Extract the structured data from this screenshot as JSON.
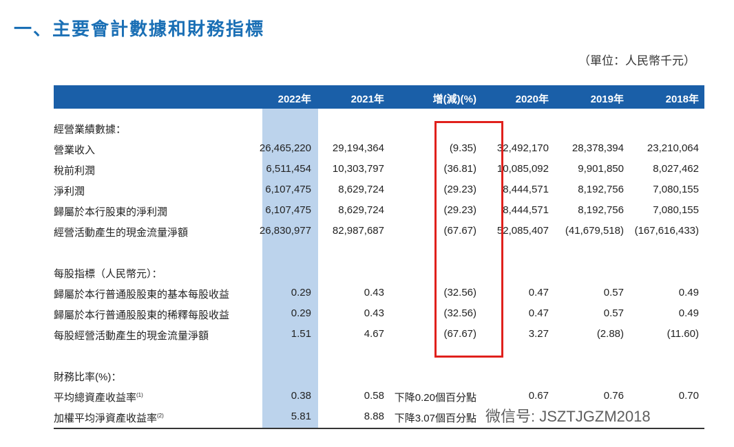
{
  "header": {
    "title": "一、主要會計數據和財務指標",
    "unit": "（單位：人民幣千元）"
  },
  "table": {
    "columns": [
      "2022年",
      "2021年",
      "增(減)(%)",
      "2020年",
      "2019年",
      "2018年"
    ],
    "sections": [
      {
        "title": "經營業績數據：",
        "rows": [
          {
            "label": "營業收入",
            "values": [
              "26,465,220",
              "29,194,364",
              "(9.35)",
              "32,492,170",
              "28,378,394",
              "23,210,064"
            ]
          },
          {
            "label": "稅前利潤",
            "values": [
              "6,511,454",
              "10,303,797",
              "(36.81)",
              "10,085,092",
              "9,901,850",
              "8,027,462"
            ]
          },
          {
            "label": "淨利潤",
            "values": [
              "6,107,475",
              "8,629,724",
              "(29.23)",
              "8,444,571",
              "8,192,756",
              "7,080,155"
            ]
          },
          {
            "label": "歸屬於本行股東的淨利潤",
            "values": [
              "6,107,475",
              "8,629,724",
              "(29.23)",
              "8,444,571",
              "8,192,756",
              "7,080,155"
            ]
          },
          {
            "label": "經營活動產生的現金流量淨額",
            "values": [
              "26,830,977",
              "82,987,687",
              "(67.67)",
              "52,085,407",
              "(41,679,518)",
              "(167,616,433)"
            ]
          }
        ]
      },
      {
        "title": "每股指標（人民幣元）：",
        "rows": [
          {
            "label": "歸屬於本行普通股股東的基本每股收益",
            "values": [
              "0.29",
              "0.43",
              "(32.56)",
              "0.47",
              "0.57",
              "0.49"
            ]
          },
          {
            "label": "歸屬於本行普通股股東的稀釋每股收益",
            "values": [
              "0.29",
              "0.43",
              "(32.56)",
              "0.47",
              "0.57",
              "0.49"
            ]
          },
          {
            "label": "每股經營活動產生的現金流量淨額",
            "values": [
              "1.51",
              "4.67",
              "(67.67)",
              "3.27",
              "(2.88)",
              "(11.60)"
            ]
          }
        ]
      },
      {
        "title": "財務比率(%)：",
        "rows": [
          {
            "label": "平均總資產收益率",
            "note": "(1)",
            "values": [
              "0.38",
              "0.58",
              "下降0.20個百分點",
              "0.67",
              "0.76",
              "0.70"
            ]
          },
          {
            "label": "加權平均淨資產收益率",
            "note": "(2)",
            "values": [
              "5.81",
              "8.88",
              "下降3.07個百分點",
              null,
              null,
              null
            ]
          }
        ]
      }
    ]
  },
  "watermark": "微信号: JSZTJGZM2018"
}
